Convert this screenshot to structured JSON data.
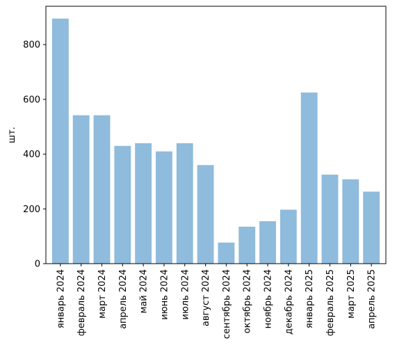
{
  "chart_data": {
    "type": "bar",
    "title": "",
    "xlabel": "",
    "ylabel": "шт.",
    "ylim": [
      0,
      940
    ],
    "yticks": [
      0,
      200,
      400,
      600,
      800
    ],
    "grid": false,
    "bar_color": "#8fbbdc",
    "categories": [
      "январь 2024",
      "февраль 2024",
      "март 2024",
      "апрель 2024",
      "май 2024",
      "июнь 2024",
      "июль 2024",
      "август 2024",
      "сентябрь 2024",
      "октябрь 2024",
      "ноябрь 2024",
      "декабрь 2024",
      "январь 2025",
      "февраль 2025",
      "март 2025",
      "апрель 2025"
    ],
    "values": [
      895,
      542,
      542,
      430,
      440,
      410,
      440,
      360,
      77,
      135,
      155,
      197,
      625,
      325,
      308,
      263
    ]
  }
}
